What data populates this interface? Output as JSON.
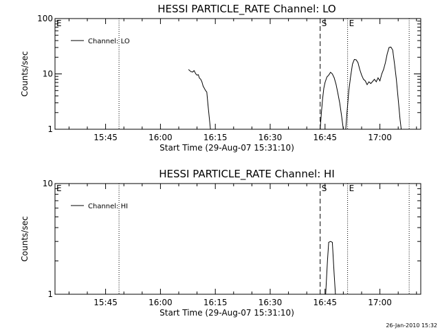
{
  "footer": {
    "timestamp": "26-Jan-2010 15:32"
  },
  "chart_data": [
    {
      "type": "line",
      "title": "HESSI PARTICLE_RATE Channel: LO",
      "xlabel": "Start Time (29-Aug-07 15:31:10)",
      "ylabel": "Counts/sec",
      "yscale": "log",
      "xlim": [
        "15:31:10",
        "17:11:10"
      ],
      "ylim": [
        1,
        100
      ],
      "x_ticks": [
        "15:45",
        "16:00",
        "16:15",
        "16:30",
        "16:45",
        "17:00"
      ],
      "y_ticks": [
        "1",
        "10",
        "100"
      ],
      "legend": {
        "entries": [
          "Channel: LO"
        ],
        "position": "top-left"
      },
      "markers": [
        {
          "time": "15:31:10",
          "style": "none",
          "label": "E"
        },
        {
          "time": "15:48:40",
          "style": "dotted",
          "label": ""
        },
        {
          "time": "16:43:40",
          "style": "dashed",
          "label": "S"
        },
        {
          "time": "16:51:10",
          "style": "dotted",
          "label": "E"
        },
        {
          "time": "17:08:00",
          "style": "dotted",
          "label": ""
        }
      ],
      "series": [
        {
          "name": "Channel: LO",
          "segments": [
            [
              [
                "16:07:40",
                12
              ],
              [
                "16:08:20",
                11
              ],
              [
                "16:08:50",
                10.8
              ],
              [
                "16:09:10",
                11.5
              ],
              [
                "16:09:40",
                10
              ],
              [
                "16:10:00",
                9.5
              ],
              [
                "16:10:20",
                9.7
              ],
              [
                "16:10:40",
                8.4
              ],
              [
                "16:11:00",
                8
              ],
              [
                "16:11:20",
                7.2
              ],
              [
                "16:11:40",
                6
              ],
              [
                "16:12:00",
                5.5
              ],
              [
                "16:12:20",
                5
              ],
              [
                "16:12:40",
                4.7
              ],
              [
                "16:13:00",
                2.7
              ],
              [
                "16:13:40",
                1
              ]
            ],
            [
              [
                "16:43:40",
                1
              ],
              [
                "16:44:00",
                2
              ],
              [
                "16:44:20",
                3.5
              ],
              [
                "16:44:40",
                5.5
              ],
              [
                "16:45:00",
                7
              ],
              [
                "16:45:30",
                8.8
              ],
              [
                "16:46:00",
                9.5
              ],
              [
                "16:46:30",
                10.7
              ],
              [
                "16:47:00",
                10
              ],
              [
                "16:47:30",
                8.5
              ],
              [
                "16:48:00",
                6.5
              ],
              [
                "16:48:30",
                4.5
              ],
              [
                "16:49:00",
                3
              ],
              [
                "16:49:30",
                1.8
              ],
              [
                "16:50:00",
                1
              ]
            ],
            [
              [
                "16:50:40",
                1
              ],
              [
                "16:51:00",
                2
              ],
              [
                "16:51:30",
                5
              ],
              [
                "16:52:00",
                9
              ],
              [
                "16:52:30",
                15
              ],
              [
                "16:53:00",
                18.3
              ],
              [
                "16:53:30",
                18
              ],
              [
                "16:54:00",
                16
              ],
              [
                "16:54:30",
                12
              ],
              [
                "16:55:00",
                9.5
              ],
              [
                "16:55:30",
                8
              ],
              [
                "16:56:00",
                7.5
              ],
              [
                "16:56:30",
                6.4
              ],
              [
                "16:57:00",
                7.2
              ],
              [
                "16:57:30",
                6.7
              ],
              [
                "16:58:00",
                7.3
              ],
              [
                "16:58:30",
                8
              ],
              [
                "16:59:00",
                7.2
              ],
              [
                "16:59:30",
                8.5
              ],
              [
                "17:00:00",
                7.5
              ],
              [
                "17:00:30",
                10
              ],
              [
                "17:01:00",
                12
              ],
              [
                "17:01:30",
                16
              ],
              [
                "17:02:00",
                23
              ],
              [
                "17:02:30",
                30
              ],
              [
                "17:03:00",
                30.5
              ],
              [
                "17:03:30",
                27
              ],
              [
                "17:04:00",
                15
              ],
              [
                "17:04:30",
                8
              ],
              [
                "17:05:00",
                3.5
              ],
              [
                "17:05:30",
                1.5
              ],
              [
                "17:05:50",
                1
              ]
            ]
          ]
        }
      ]
    },
    {
      "type": "line",
      "title": "HESSI PARTICLE_RATE Channel: HI",
      "xlabel": "Start Time (29-Aug-07 15:31:10)",
      "ylabel": "Counts/sec",
      "yscale": "log",
      "xlim": [
        "15:31:10",
        "17:11:10"
      ],
      "ylim": [
        1,
        10
      ],
      "x_ticks": [
        "15:45",
        "16:00",
        "16:15",
        "16:30",
        "16:45",
        "17:00"
      ],
      "y_ticks": [
        "1",
        "10"
      ],
      "legend": {
        "entries": [
          "Channel: HI"
        ],
        "position": "top-left"
      },
      "markers": [
        {
          "time": "15:31:10",
          "style": "none",
          "label": "E"
        },
        {
          "time": "15:48:40",
          "style": "dotted",
          "label": ""
        },
        {
          "time": "16:43:40",
          "style": "dashed",
          "label": "S"
        },
        {
          "time": "16:51:10",
          "style": "dotted",
          "label": "E"
        },
        {
          "time": "17:08:00",
          "style": "dotted",
          "label": ""
        }
      ],
      "series": [
        {
          "name": "Channel: HI",
          "segments": [
            [
              [
                "16:45:10",
                1
              ],
              [
                "16:45:40",
                2
              ],
              [
                "16:46:00",
                2.95
              ],
              [
                "16:46:30",
                3
              ],
              [
                "16:47:00",
                2.95
              ],
              [
                "16:47:30",
                1.5
              ],
              [
                "16:47:50",
                1
              ]
            ]
          ]
        }
      ]
    }
  ]
}
